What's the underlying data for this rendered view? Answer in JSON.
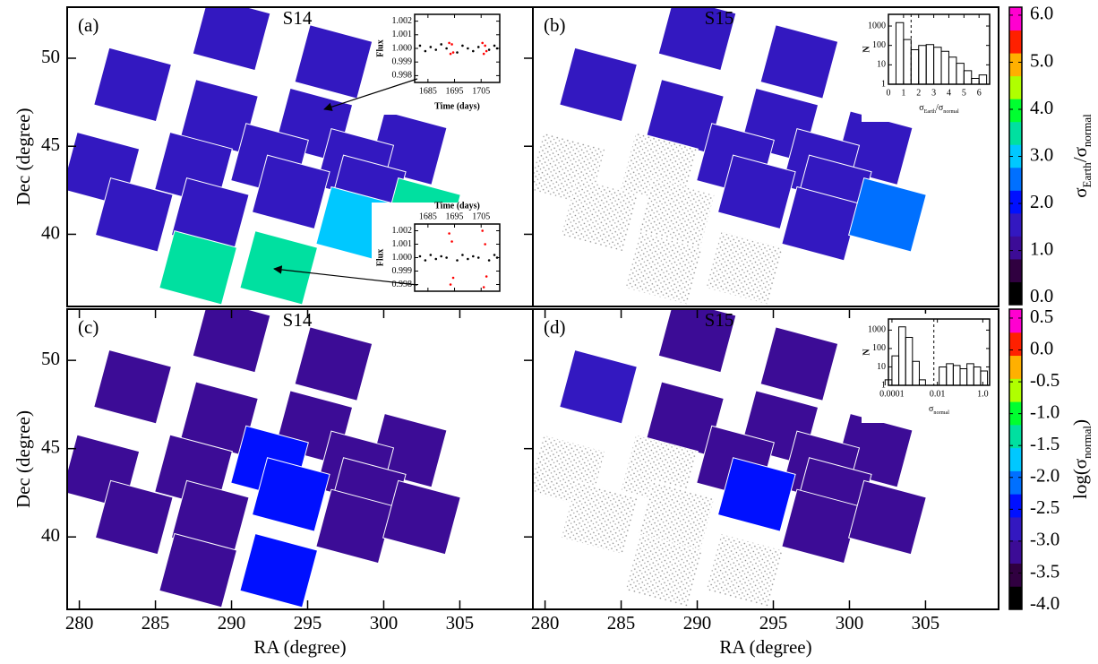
{
  "chart_data": [
    {
      "type": "scatter",
      "label": "(a)",
      "title": "S14",
      "colorbar": 0,
      "x": [
        290.0,
        296.7,
        283.5,
        289.2,
        295.4,
        301.6,
        281.4,
        287.5,
        292.5,
        298.1,
        283.6,
        288.6,
        293.9,
        298.9,
        287.8,
        293.1,
        298.1,
        302.5
      ],
      "y": [
        51.4,
        49.8,
        48.5,
        46.7,
        46.2,
        44.9,
        43.7,
        43.7,
        44.2,
        43.9,
        41.1,
        41.1,
        42.4,
        42.4,
        38.1,
        38.1,
        40.6,
        41.1
      ],
      "values": [
        1.3,
        1.2,
        1.2,
        1.3,
        1.2,
        1.2,
        1.2,
        1.3,
        1.4,
        1.2,
        1.2,
        1.3,
        1.3,
        1.3,
        3.6,
        3.8,
        3.2,
        3.4
      ],
      "xlim": [
        279.2,
        309.8
      ],
      "ylim": [
        35.9,
        52.9
      ],
      "yticks": [
        40,
        45,
        50
      ],
      "ylabel": "Dec (degree)",
      "insets": [
        {
          "type": "scatter",
          "xlabel": "Time (days)",
          "ylabel": "Flux",
          "xlim": [
            1680,
            1712
          ],
          "ylim": [
            0.9975,
            1.0025
          ],
          "xticks": [
            1685,
            1695,
            1705
          ],
          "yticks": [
            0.998,
            0.999,
            {
              "value": 1,
              "label": "1.000"
            },
            1.001,
            1.002
          ],
          "series": [
            {
              "color": "#000000",
              "x": [
                1682,
                1684,
                1686,
                1688,
                1690,
                1692,
                1696,
                1698,
                1700,
                1702,
                1704,
                1708,
                1710,
                1711
              ],
              "values": [
                1.0002,
                0.9998,
                1.0001,
                0.9999,
                1.0003,
                1.0,
                0.9997,
                1.0002,
                1.0,
                0.9998,
                1.0001,
                0.9999,
                1.0002,
                1.0
              ]
            },
            {
              "color": "#ff0000",
              "x": [
                1693,
                1693.5,
                1694,
                1694.5,
                1705.5,
                1706,
                1706.5,
                1707
              ],
              "values": [
                1.0004,
                0.9996,
                1.0003,
                0.9997,
                1.0004,
                0.9996,
                1.0002,
                0.9998
              ]
            }
          ]
        },
        {
          "type": "scatter",
          "xlabel": "Time (days)",
          "ylabel": "Flux",
          "xlim": [
            1680,
            1712
          ],
          "ylim": [
            0.9975,
            1.0025
          ],
          "xticks": [
            1685,
            1695,
            1705
          ],
          "yticks": [
            0.998,
            0.999,
            {
              "value": 1,
              "label": "1.000"
            },
            1.001,
            1.002
          ],
          "series": [
            {
              "color": "#000000",
              "x": [
                1682,
                1684,
                1686,
                1688,
                1690,
                1692,
                1696,
                1698,
                1700,
                1702,
                1704,
                1708,
                1710,
                1711
              ],
              "values": [
                1.0001,
                0.9998,
                1.0002,
                0.9999,
                1.0001,
                1.0,
                0.9998,
                1.0002,
                0.9999,
                1.0001,
                1.0,
                0.9998,
                1.0002,
                1.0
              ]
            },
            {
              "color": "#ff0000",
              "x": [
                1693,
                1693.5,
                1694,
                1694.5,
                1705.5,
                1706,
                1706.5,
                1707
              ],
              "values": [
                1.0018,
                0.998,
                1.0012,
                0.9985,
                1.002,
                0.9978,
                1.001,
                0.9986
              ]
            }
          ]
        }
      ]
    },
    {
      "type": "scatter",
      "label": "(b)",
      "title": "S15",
      "colorbar": 0,
      "x": [
        290.0,
        296.7,
        283.5,
        289.2,
        295.4,
        301.6,
        281.4,
        287.5,
        292.5,
        298.1,
        283.6,
        288.6,
        293.9,
        298.9,
        287.8,
        293.1,
        298.1,
        302.5
      ],
      "y": [
        51.4,
        49.8,
        48.5,
        46.7,
        46.2,
        44.9,
        43.7,
        43.7,
        44.2,
        43.9,
        41.1,
        41.1,
        42.4,
        42.4,
        38.1,
        38.1,
        40.6,
        41.1
      ],
      "values": [
        1.3,
        1.2,
        1.4,
        1.3,
        1.3,
        1.2,
        null,
        null,
        1.5,
        1.3,
        null,
        null,
        1.6,
        1.3,
        null,
        null,
        1.4,
        2.7
      ],
      "xlim": [
        279.2,
        309.8
      ],
      "ylim": [
        35.9,
        52.9
      ],
      "insets": [
        {
          "type": "histogram",
          "ylabel": "N",
          "xlabel": [
            {
              "text": "σ"
            },
            {
              "text": "Earth",
              "sub": true
            },
            {
              "text": "/σ"
            },
            {
              "text": "normal",
              "sub": true
            }
          ],
          "bins": [
            0,
            0.5,
            1,
            1.5,
            2,
            2.5,
            3,
            3.5,
            4,
            4.5,
            5,
            5.5,
            6,
            6.5
          ],
          "values": [
            1,
            1500,
            200,
            60,
            100,
            110,
            80,
            50,
            25,
            12,
            5,
            2,
            3
          ],
          "xlim": [
            0,
            6.7
          ],
          "ylim": [
            1,
            4000
          ],
          "log_y": true,
          "xticks": [
            0,
            1,
            2,
            3,
            4,
            5,
            6
          ],
          "yticks": [
            1,
            10,
            100,
            1000
          ],
          "threshold": 1.5
        }
      ]
    },
    {
      "type": "scatter",
      "label": "(c)",
      "title": "S14",
      "colorbar": 1,
      "x": [
        290.0,
        296.7,
        283.5,
        289.2,
        295.4,
        301.6,
        281.4,
        287.5,
        292.5,
        298.1,
        283.6,
        288.6,
        293.9,
        298.9,
        287.8,
        293.1,
        298.1,
        302.5
      ],
      "y": [
        51.4,
        49.8,
        48.5,
        46.7,
        46.2,
        44.9,
        43.7,
        43.7,
        44.2,
        43.9,
        41.1,
        41.1,
        42.4,
        42.4,
        38.1,
        38.1,
        40.6,
        41.1
      ],
      "values": [
        -3.2,
        -3.3,
        -3.3,
        -3.3,
        -3.3,
        -3.3,
        -3.3,
        -3.3,
        -2.6,
        -3.3,
        -3.3,
        -3.2,
        -2.4,
        -3.3,
        -3.3,
        -2.5,
        -3.3,
        -3.3
      ],
      "xlim": [
        279.2,
        309.8
      ],
      "ylim": [
        35.9,
        52.9
      ],
      "xticks": [
        280,
        285,
        290,
        295,
        300,
        305
      ],
      "yticks": [
        40,
        45,
        50
      ],
      "xlabel": "RA (degree)",
      "ylabel": "Dec (degree)",
      "insets": []
    },
    {
      "type": "scatter",
      "label": "(d)",
      "title": "S15",
      "colorbar": 1,
      "x": [
        290.0,
        296.7,
        283.5,
        289.2,
        295.4,
        301.6,
        281.4,
        287.5,
        292.5,
        298.1,
        283.6,
        288.6,
        293.9,
        298.9,
        287.8,
        293.1,
        298.1,
        302.5
      ],
      "y": [
        51.4,
        49.8,
        48.5,
        46.7,
        46.2,
        44.9,
        43.7,
        43.7,
        44.2,
        43.9,
        41.1,
        41.1,
        42.4,
        42.4,
        38.1,
        38.1,
        40.6,
        41.1
      ],
      "values": [
        -3.3,
        -3.3,
        -2.8,
        -3.3,
        -3.3,
        -3.3,
        null,
        null,
        -3.2,
        -3.3,
        null,
        null,
        -2.6,
        -3.3,
        null,
        null,
        -3.3,
        -3.2
      ],
      "xlim": [
        279.2,
        309.8
      ],
      "ylim": [
        35.9,
        52.9
      ],
      "xticks": [
        280,
        285,
        290,
        295,
        300,
        305
      ],
      "xlabel": "RA (degree)",
      "insets": [
        {
          "type": "histogram",
          "ylabel": "N",
          "xlabel": [
            {
              "text": "σ"
            },
            {
              "text": "normal",
              "sub": true
            }
          ],
          "bins": [
            5e-05,
            0.0001,
            0.0002,
            0.0004,
            0.0008,
            0.0016,
            0.003,
            0.006,
            0.012,
            0.025,
            0.05,
            0.1,
            0.2,
            0.4,
            0.8,
            1.6
          ],
          "values": [
            2,
            40,
            1500,
            400,
            20,
            2,
            0,
            0,
            10,
            15,
            12,
            8,
            15,
            10,
            6
          ],
          "xlim": [
            7e-05,
            2
          ],
          "ylim": [
            1,
            4000
          ],
          "log_x": true,
          "log_y": true,
          "xticks": [
            0.0001,
            0.01,
            {
              "value": 1,
              "label": "1.0"
            }
          ],
          "yticks": [
            1,
            10,
            100,
            1000
          ],
          "threshold": 0.007
        }
      ]
    }
  ],
  "colorbars": [
    {
      "label": [
        {
          "text": "σ"
        },
        {
          "text": "Earth",
          "sub": true
        },
        {
          "text": "/σ"
        },
        {
          "text": "normal",
          "sub": true
        }
      ],
      "lim": [
        -0.15,
        6.17
      ],
      "ticks": [
        {
          "value": 0,
          "label": "0.0"
        },
        {
          "value": 1,
          "label": "1.0"
        },
        {
          "value": 2,
          "label": "2.0"
        },
        {
          "value": 3,
          "label": "3.0"
        },
        {
          "value": 4,
          "label": "4.0"
        },
        {
          "value": 5,
          "label": "5.0"
        },
        {
          "value": 6,
          "label": "6.0"
        }
      ],
      "colors": [
        "#000000",
        "#300040",
        "#3c0c96",
        "#3318c0",
        "#0010ff",
        "#0070ff",
        "#00c8ff",
        "#00e0a0",
        "#00ff30",
        "#b0ff00",
        "#ffb000",
        "#ff2000",
        "#ff00d0"
      ]
    },
    {
      "label": [
        {
          "text": "log(σ"
        },
        {
          "text": "normal",
          "sub": true
        },
        {
          "text": ")"
        }
      ],
      "lim": [
        -4.07,
        0.64
      ],
      "ticks": [
        {
          "value": -4,
          "label": "-4.0"
        },
        -3.5,
        {
          "value": -3,
          "label": "-3.0"
        },
        -2.5,
        {
          "value": -2,
          "label": "-2.0"
        },
        -1.5,
        {
          "value": -1,
          "label": "-1.0"
        },
        -0.5,
        {
          "value": 0,
          "label": "0.0"
        },
        0.5
      ],
      "colors": [
        "#000000",
        "#300040",
        "#3c0c96",
        "#3318c0",
        "#0010ff",
        "#0070ff",
        "#00c8ff",
        "#00e0a0",
        "#00ff30",
        "#b0ff00",
        "#ffb000",
        "#ff2000",
        "#ff00d0"
      ]
    }
  ]
}
